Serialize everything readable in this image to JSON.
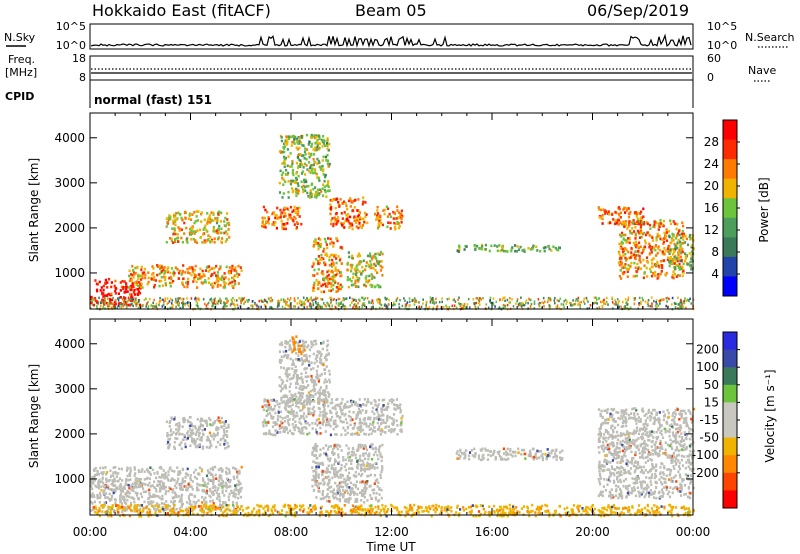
{
  "header": {
    "station": "Hokkaido East (fitACF)",
    "beam": "Beam 05",
    "date": "06/Sep/2019"
  },
  "noise_panel": {
    "left_label": "N.Sky",
    "right_label": "N.Search",
    "ticks_left": [
      "10^5",
      "10^0"
    ],
    "ticks_right": [
      "10^5",
      "10^0"
    ]
  },
  "freq_panel": {
    "left_label_line1": "Freq.",
    "left_label_line2": "[MHz]",
    "right_label": "Nave",
    "ticks_left": [
      "18",
      "8"
    ],
    "ticks_right": [
      "60",
      "0"
    ]
  },
  "cpid_panel": {
    "label": "CPID",
    "text": "normal (fast) 151"
  },
  "colors": {
    "power_scale": [
      "#0000ff",
      "#2244aa",
      "#3a7a5a",
      "#4d9e5a",
      "#6cc43c",
      "#f0b400",
      "#ff7a00",
      "#ff2a00",
      "#ff0000"
    ],
    "velocity_scale": [
      "#2a2adf",
      "#3a4aa8",
      "#3a7a5a",
      "#6cc43c",
      "#c8c8c0",
      "#c8c8c0",
      "#f0b400",
      "#ff8800",
      "#ff4400",
      "#ff0000"
    ],
    "ground_grey": "#bdbdb6"
  },
  "chart_data": [
    {
      "type": "heatmap",
      "name": "power",
      "ylabel": "Slant Range [km]",
      "yticks": [
        "1000",
        "2000",
        "3000",
        "4000"
      ],
      "ylim": [
        200,
        4550
      ],
      "xlim_hours": [
        0,
        24
      ],
      "colorbar_label": "Power [dB]",
      "colorbar_ticks": [
        "4",
        "8",
        "12",
        "16",
        "20",
        "24",
        "28"
      ],
      "colorbar_range": [
        0,
        32
      ],
      "features": [
        {
          "t": [
            0.0,
            2.0
          ],
          "range": [
            300,
            900
          ],
          "level": 30
        },
        {
          "t": [
            1.5,
            6.0
          ],
          "range": [
            700,
            1200
          ],
          "level": 22
        },
        {
          "t": [
            3.0,
            5.5
          ],
          "range": [
            1700,
            2400
          ],
          "level": 20
        },
        {
          "t": [
            6.8,
            8.4
          ],
          "range": [
            2000,
            2500
          ],
          "level": 24
        },
        {
          "t": [
            7.5,
            9.5
          ],
          "range": [
            2700,
            4100
          ],
          "level": 16
        },
        {
          "t": [
            9.5,
            11.0
          ],
          "range": [
            2000,
            2700
          ],
          "level": 24
        },
        {
          "t": [
            11.3,
            12.4
          ],
          "range": [
            2000,
            2500
          ],
          "level": 22
        },
        {
          "t": [
            8.8,
            10.0
          ],
          "range": [
            600,
            1800
          ],
          "level": 22
        },
        {
          "t": [
            10.2,
            11.6
          ],
          "range": [
            700,
            1500
          ],
          "level": 18
        },
        {
          "t": [
            14.5,
            18.8
          ],
          "range": [
            1500,
            1650
          ],
          "level": 14
        },
        {
          "t": [
            20.2,
            22.0
          ],
          "range": [
            2100,
            2500
          ],
          "level": 24
        },
        {
          "t": [
            21.0,
            23.6
          ],
          "range": [
            900,
            2200
          ],
          "level": 22
        },
        {
          "t": [
            23.0,
            24.0
          ],
          "range": [
            1100,
            1900
          ],
          "level": 16
        }
      ]
    },
    {
      "type": "heatmap",
      "name": "velocity",
      "ylabel": "Slant Range [km]",
      "xlabel": "Time UT",
      "xticks": [
        "00:00",
        "04:00",
        "08:00",
        "12:00",
        "16:00",
        "20:00",
        "00:00"
      ],
      "yticks": [
        "1000",
        "2000",
        "3000",
        "4000"
      ],
      "ylim": [
        200,
        4550
      ],
      "xlim_hours": [
        0,
        24
      ],
      "colorbar_label": "Velocity [m s⁻¹]",
      "colorbar_ticks": [
        "200",
        "100",
        "50",
        "15",
        "-15",
        "-50",
        "-100",
        "-200"
      ],
      "colorbar_range": [
        -250,
        250
      ],
      "features": [
        {
          "t": [
            0.0,
            6.0
          ],
          "range": [
            300,
            1300
          ],
          "velocity": 0
        },
        {
          "t": [
            3.0,
            5.5
          ],
          "range": [
            1700,
            2400
          ],
          "velocity": 0
        },
        {
          "t": [
            6.8,
            12.4
          ],
          "range": [
            2000,
            2800
          ],
          "velocity": 0
        },
        {
          "t": [
            7.5,
            9.5
          ],
          "range": [
            2700,
            4100
          ],
          "velocity": 0
        },
        {
          "t": [
            8.0,
            8.4
          ],
          "range": [
            3800,
            4200
          ],
          "velocity": -80
        },
        {
          "t": [
            8.8,
            11.6
          ],
          "range": [
            500,
            1800
          ],
          "velocity": 0
        },
        {
          "t": [
            14.5,
            18.8
          ],
          "range": [
            1450,
            1700
          ],
          "velocity": 0
        },
        {
          "t": [
            20.2,
            24.0
          ],
          "range": [
            600,
            2600
          ],
          "velocity": 0
        },
        {
          "t": [
            0.0,
            24.0
          ],
          "range": [
            200,
            450
          ],
          "velocity": -40
        }
      ]
    }
  ]
}
